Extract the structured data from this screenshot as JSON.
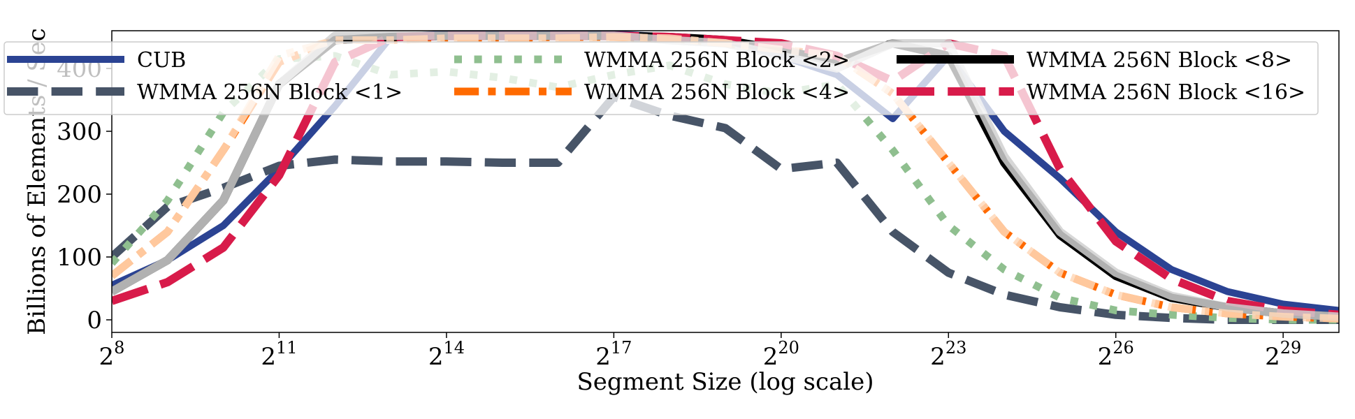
{
  "chart_data": {
    "type": "line",
    "title": "",
    "xlabel": "Segment Size (log scale)",
    "ylabel": "Billions of Elements / Sec",
    "x_scale": "log2",
    "x_exponents": [
      8,
      9,
      10,
      11,
      12,
      13,
      14,
      15,
      16,
      17,
      18,
      19,
      20,
      21,
      22,
      23,
      24,
      25,
      26,
      27,
      28,
      29,
      30
    ],
    "xlim_exponents": [
      8,
      30
    ],
    "x_ticks": [
      {
        "base": "2",
        "exp": "8",
        "value": 8
      },
      {
        "base": "2",
        "exp": "11",
        "value": 11
      },
      {
        "base": "2",
        "exp": "14",
        "value": 14
      },
      {
        "base": "2",
        "exp": "17",
        "value": 17
      },
      {
        "base": "2",
        "exp": "20",
        "value": 20
      },
      {
        "base": "2",
        "exp": "23",
        "value": 23
      },
      {
        "base": "2",
        "exp": "26",
        "value": 26
      },
      {
        "base": "2",
        "exp": "29",
        "value": 29
      }
    ],
    "ylim": [
      -20,
      460
    ],
    "y_ticks": [
      {
        "label": "0",
        "value": 0
      },
      {
        "label": "100",
        "value": 100
      },
      {
        "label": "200",
        "value": 200
      },
      {
        "label": "300",
        "value": 300
      },
      {
        "label": "400",
        "value": 400
      }
    ],
    "grid": false,
    "legend": {
      "position": "top",
      "columns": 3
    },
    "series": [
      {
        "name": "CUB",
        "color": "#2b4393",
        "dash": "solid",
        "width": 10,
        "opacity": 1,
        "values": [
          55,
          95,
          150,
          240,
          340,
          450,
          455,
          455,
          455,
          455,
          450,
          445,
          420,
          390,
          320,
          420,
          300,
          225,
          140,
          80,
          45,
          25,
          15
        ]
      },
      {
        "name": "WMMA 256N Block <1>",
        "color": "#475467",
        "dash": "dashed",
        "width": 12,
        "opacity": 1,
        "values": [
          100,
          180,
          210,
          245,
          255,
          252,
          252,
          250,
          250,
          355,
          325,
          305,
          240,
          250,
          140,
          75,
          40,
          20,
          8,
          3,
          0,
          0,
          0
        ]
      },
      {
        "name": "WMMA 256N Block <2>",
        "color": "#8fbf8f",
        "dash": "dotted",
        "width": 11,
        "opacity": 1,
        "values": [
          90,
          190,
          330,
          415,
          420,
          390,
          395,
          385,
          370,
          390,
          405,
          375,
          360,
          375,
          270,
          150,
          80,
          35,
          15,
          8,
          3,
          0,
          0
        ]
      },
      {
        "name": "WMMA 256N Block <4>",
        "color": "#ff6a00",
        "dash": "dashdot",
        "width": 11,
        "opacity": 1,
        "values": [
          70,
          140,
          270,
          410,
          445,
          445,
          448,
          448,
          450,
          450,
          448,
          440,
          430,
          420,
          360,
          250,
          140,
          75,
          40,
          20,
          10,
          5,
          2
        ]
      },
      {
        "name": "WMMA 256N Block <8>",
        "color": "#000000",
        "dash": "solid",
        "width": 12,
        "opacity": 1,
        "values": [
          45,
          95,
          190,
          375,
          445,
          450,
          452,
          452,
          452,
          452,
          450,
          445,
          430,
          410,
          440,
          420,
          250,
          135,
          70,
          35,
          20,
          10,
          5
        ]
      },
      {
        "name": "WMMA 256N Block <16>",
        "color": "#d81b4a",
        "dash": "longdash",
        "width": 12,
        "opacity": 1,
        "values": [
          30,
          60,
          115,
          230,
          410,
          450,
          452,
          452,
          452,
          452,
          450,
          445,
          440,
          420,
          380,
          440,
          420,
          240,
          125,
          65,
          30,
          15,
          8
        ]
      },
      {
        "name": "",
        "color": "#d0d0d0",
        "dash": "solid",
        "width": 12,
        "opacity": 0.85,
        "values": [
          45,
          95,
          190,
          375,
          452,
          452,
          452,
          452,
          452,
          452,
          445,
          440,
          420,
          400,
          440,
          440,
          260,
          140,
          75,
          38,
          20,
          10,
          5
        ]
      },
      {
        "name": "",
        "color": "#ffd8b8",
        "dash": "dashdot",
        "width": 11,
        "opacity": 0.85,
        "values": [
          70,
          140,
          270,
          420,
          445,
          445,
          448,
          448,
          448,
          450,
          448,
          440,
          430,
          420,
          360,
          250,
          140,
          75,
          40,
          20,
          10,
          5,
          2
        ]
      }
    ]
  }
}
